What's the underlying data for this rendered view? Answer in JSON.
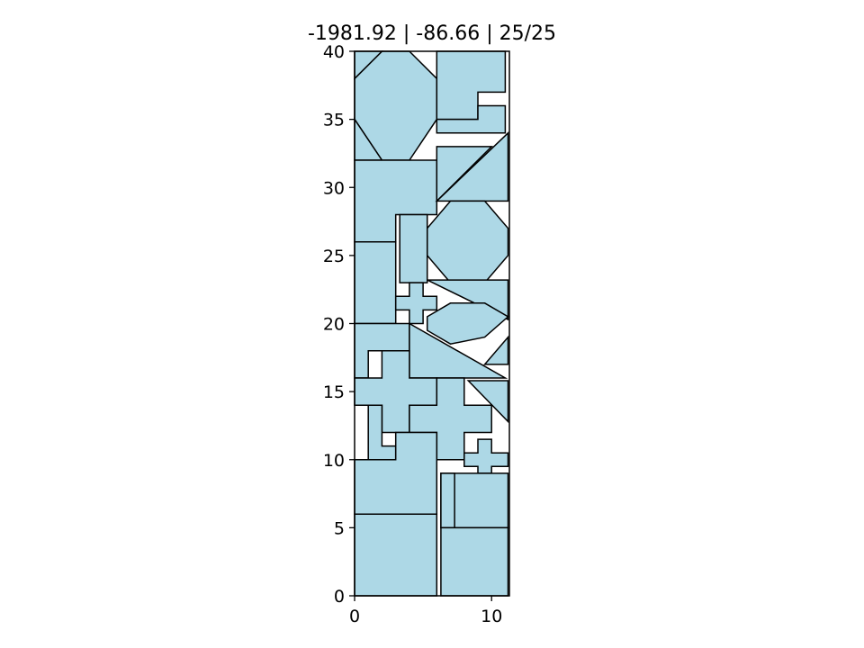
{
  "chart_data": {
    "type": "polygon-packing",
    "title": "-1981.92 | -86.66 | 25/25",
    "xlim": [
      0,
      11.3
    ],
    "ylim": [
      0,
      40
    ],
    "x_ticks": [
      0,
      10
    ],
    "y_ticks": [
      0,
      5,
      10,
      15,
      20,
      25,
      30,
      35,
      40
    ],
    "x_tick_labels": [
      "0",
      "10"
    ],
    "y_tick_labels": [
      "0",
      "5",
      "10",
      "15",
      "20",
      "25",
      "30",
      "35",
      "40"
    ],
    "fill_color": "#add8e6",
    "edge_color": "#000000",
    "background": "#ffffff",
    "grid": false,
    "pieces": [
      {
        "name": "piece-octagon-top",
        "points": [
          [
            0,
            38
          ],
          [
            2,
            40
          ],
          [
            4,
            40
          ],
          [
            6,
            38
          ],
          [
            6,
            35
          ],
          [
            4,
            32
          ],
          [
            2,
            32
          ],
          [
            0,
            35
          ]
        ]
      },
      {
        "name": "piece-corner-triangle-a",
        "points": [
          [
            0,
            40
          ],
          [
            0,
            38
          ],
          [
            2,
            40
          ]
        ]
      },
      {
        "name": "piece-corner-triangle-b",
        "points": [
          [
            0,
            35
          ],
          [
            2,
            32
          ],
          [
            0,
            32
          ]
        ]
      },
      {
        "name": "piece-l-shape-upper",
        "points": [
          [
            6,
            40
          ],
          [
            11,
            40
          ],
          [
            11,
            37
          ],
          [
            9,
            37
          ],
          [
            9,
            35
          ],
          [
            6,
            35
          ]
        ]
      },
      {
        "name": "piece-l-shape-lower",
        "points": [
          [
            6,
            35
          ],
          [
            9,
            35
          ],
          [
            9,
            36
          ],
          [
            11,
            36
          ],
          [
            11,
            34
          ],
          [
            6,
            34
          ]
        ]
      },
      {
        "name": "piece-rect-left-30",
        "points": [
          [
            0,
            32
          ],
          [
            6,
            32
          ],
          [
            6,
            28
          ],
          [
            3,
            28
          ],
          [
            3,
            26
          ],
          [
            0,
            26
          ]
        ]
      },
      {
        "name": "piece-trapezoid-32",
        "points": [
          [
            6,
            33
          ],
          [
            10,
            33
          ],
          [
            6,
            29
          ]
        ]
      },
      {
        "name": "piece-triangle-right-32",
        "points": [
          [
            6,
            29
          ],
          [
            11.2,
            34
          ],
          [
            11.2,
            29
          ]
        ]
      },
      {
        "name": "piece-octagon-mid",
        "points": [
          [
            7,
            29
          ],
          [
            9.5,
            29
          ],
          [
            11.2,
            27
          ],
          [
            11.2,
            25
          ],
          [
            9.5,
            23
          ],
          [
            7,
            23
          ],
          [
            5.3,
            25
          ],
          [
            5.3,
            27
          ]
        ]
      },
      {
        "name": "piece-tall-rect-26",
        "points": [
          [
            3.3,
            28
          ],
          [
            5.3,
            28
          ],
          [
            5.3,
            23
          ],
          [
            3.3,
            23
          ]
        ]
      },
      {
        "name": "piece-rect-left-23",
        "points": [
          [
            0,
            26
          ],
          [
            3,
            26
          ],
          [
            3,
            20
          ],
          [
            0,
            20
          ]
        ]
      },
      {
        "name": "piece-small-cross",
        "points": [
          [
            4,
            23
          ],
          [
            5,
            23
          ],
          [
            5,
            22
          ],
          [
            6,
            22
          ],
          [
            6,
            21
          ],
          [
            5,
            21
          ],
          [
            5,
            20
          ],
          [
            4,
            20
          ],
          [
            4,
            21
          ],
          [
            3,
            21
          ],
          [
            3,
            22
          ],
          [
            4,
            22
          ]
        ]
      },
      {
        "name": "piece-triangle-22",
        "points": [
          [
            5.3,
            23.2
          ],
          [
            11.2,
            23.2
          ],
          [
            11.2,
            20.3
          ]
        ]
      },
      {
        "name": "piece-hexagon-20",
        "points": [
          [
            5.3,
            20.5
          ],
          [
            7,
            21.5
          ],
          [
            9.5,
            21.5
          ],
          [
            11.2,
            20.5
          ],
          [
            9.5,
            19
          ],
          [
            7,
            18.5
          ],
          [
            5.3,
            19.5
          ]
        ]
      },
      {
        "name": "piece-rect-left-19",
        "points": [
          [
            0,
            20
          ],
          [
            4,
            20
          ],
          [
            4,
            18
          ],
          [
            1,
            18
          ],
          [
            1,
            16
          ],
          [
            0,
            16
          ]
        ]
      },
      {
        "name": "piece-big-triangle-18",
        "points": [
          [
            4,
            20
          ],
          [
            4,
            16
          ],
          [
            11,
            16
          ]
        ]
      },
      {
        "name": "piece-small-triangle-18",
        "points": [
          [
            9.5,
            17
          ],
          [
            11.2,
            19
          ],
          [
            11.2,
            17
          ]
        ]
      },
      {
        "name": "piece-cross-left",
        "points": [
          [
            2,
            18
          ],
          [
            4,
            18
          ],
          [
            4,
            16
          ],
          [
            6,
            16
          ],
          [
            6,
            14
          ],
          [
            4,
            14
          ],
          [
            4,
            12
          ],
          [
            2,
            12
          ],
          [
            2,
            14
          ],
          [
            0,
            14
          ],
          [
            0,
            16
          ],
          [
            2,
            16
          ]
        ]
      },
      {
        "name": "piece-triangle-15",
        "points": [
          [
            8.3,
            15.8
          ],
          [
            11.2,
            15.8
          ],
          [
            11.2,
            12.8
          ]
        ]
      },
      {
        "name": "piece-cross-right",
        "points": [
          [
            6,
            16
          ],
          [
            8,
            16
          ],
          [
            8,
            14
          ],
          [
            10,
            14
          ],
          [
            10,
            12
          ],
          [
            8,
            12
          ],
          [
            8,
            10
          ],
          [
            6,
            10
          ],
          [
            6,
            12
          ],
          [
            4,
            12
          ],
          [
            4,
            14
          ],
          [
            6,
            14
          ]
        ]
      },
      {
        "name": "piece-thin-rect-12",
        "points": [
          [
            1,
            14
          ],
          [
            2,
            14
          ],
          [
            2,
            11
          ],
          [
            3,
            11
          ],
          [
            3,
            10
          ],
          [
            1,
            10
          ]
        ]
      },
      {
        "name": "piece-rect-left-10",
        "points": [
          [
            3,
            12
          ],
          [
            6,
            12
          ],
          [
            6,
            6
          ],
          [
            0,
            6
          ],
          [
            0,
            10
          ],
          [
            3,
            10
          ]
        ]
      },
      {
        "name": "piece-small-cross-right",
        "points": [
          [
            9,
            11.5
          ],
          [
            10,
            11.5
          ],
          [
            10,
            10.5
          ],
          [
            11.2,
            10.5
          ],
          [
            11.2,
            9.5
          ],
          [
            10,
            9.5
          ],
          [
            10,
            9
          ],
          [
            9,
            9
          ],
          [
            9,
            9.5
          ],
          [
            8,
            9.5
          ],
          [
            8,
            10.5
          ],
          [
            9,
            10.5
          ]
        ]
      },
      {
        "name": "piece-rect-right-7",
        "points": [
          [
            6.3,
            9
          ],
          [
            11.2,
            9
          ],
          [
            11.2,
            5
          ],
          [
            7.3,
            5
          ],
          [
            7.3,
            5
          ],
          [
            6.3,
            5
          ]
        ]
      },
      {
        "name": "piece-thin-rect-7",
        "points": [
          [
            6.3,
            9
          ],
          [
            7.3,
            9
          ],
          [
            7.3,
            5
          ],
          [
            6.3,
            5
          ]
        ]
      },
      {
        "name": "piece-rect-bottom-left",
        "points": [
          [
            0,
            6
          ],
          [
            6,
            6
          ],
          [
            6,
            0
          ],
          [
            0,
            0
          ]
        ]
      },
      {
        "name": "piece-rect-bottom-right",
        "points": [
          [
            6.3,
            5
          ],
          [
            11.2,
            5
          ],
          [
            11.2,
            0
          ],
          [
            6.3,
            0
          ]
        ]
      }
    ]
  }
}
